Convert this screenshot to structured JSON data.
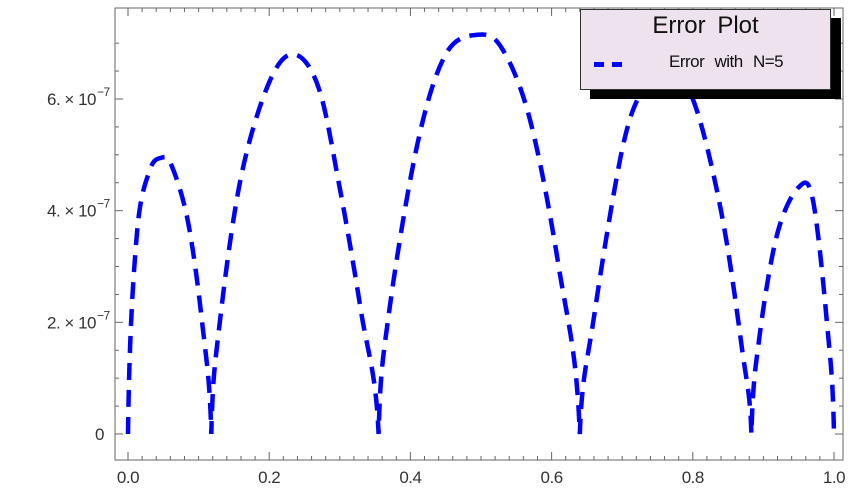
{
  "chart_data": {
    "type": "line",
    "title": "Error Plot",
    "xlabel": "",
    "ylabel": "",
    "xlim": [
      0,
      1.0
    ],
    "ylim": [
      -2.5e-08,
      7.5e-07
    ],
    "grid": false,
    "legend_position": "top-right",
    "x_ticks": [
      {
        "value": 0.0,
        "label": "0.0"
      },
      {
        "value": 0.2,
        "label": "0.2"
      },
      {
        "value": 0.4,
        "label": "0.4"
      },
      {
        "value": 0.6,
        "label": "0.6"
      },
      {
        "value": 0.8,
        "label": "0.8"
      },
      {
        "value": 1.0,
        "label": "1.0"
      }
    ],
    "y_ticks": [
      {
        "value": 0,
        "coef": "0",
        "exp": ""
      },
      {
        "value": 2e-07,
        "coef": "2. × 10",
        "exp": "−7"
      },
      {
        "value": 4e-07,
        "coef": "4. × 10",
        "exp": "−7"
      },
      {
        "value": 6e-07,
        "coef": "6. × 10",
        "exp": "−7"
      }
    ],
    "series": [
      {
        "name": "Error with N=5",
        "color": "#0000ff",
        "style": "dashed",
        "x": [
          0.0,
          0.012,
          0.03,
          0.048,
          0.062,
          0.085,
          0.105,
          0.118,
          0.13,
          0.16,
          0.2,
          0.235,
          0.27,
          0.3,
          0.33,
          0.355,
          0.37,
          0.41,
          0.45,
          0.495,
          0.53,
          0.57,
          0.61,
          0.64,
          0.66,
          0.7,
          0.73,
          0.76,
          0.8,
          0.84,
          0.87,
          0.883,
          0.895,
          0.92,
          0.95,
          0.97,
          0.99,
          1.0
        ],
        "y": [
          0,
          3.5e-07,
          4.7e-07,
          4.95e-07,
          4.8e-07,
          3.8e-07,
          2e-07,
          0,
          2e-07,
          4.6e-07,
          6.3e-07,
          6.8e-07,
          6.2e-07,
          4.4e-07,
          2.2e-07,
          0,
          2.2e-07,
          5.2e-07,
          6.8e-07,
          7.15e-07,
          6.9e-07,
          5.6e-07,
          3e-07,
          0,
          2.1e-07,
          5.1e-07,
          6.2e-07,
          6.6e-07,
          6e-07,
          4e-07,
          1.5e-07,
          0,
          1.8e-07,
          3.6e-07,
          4.42e-07,
          4.2e-07,
          2e-07,
          0
        ]
      }
    ]
  },
  "legend": {
    "title": "Error Plot",
    "entry_label": "Error with N=5",
    "swatch_color": "#0000ff"
  }
}
